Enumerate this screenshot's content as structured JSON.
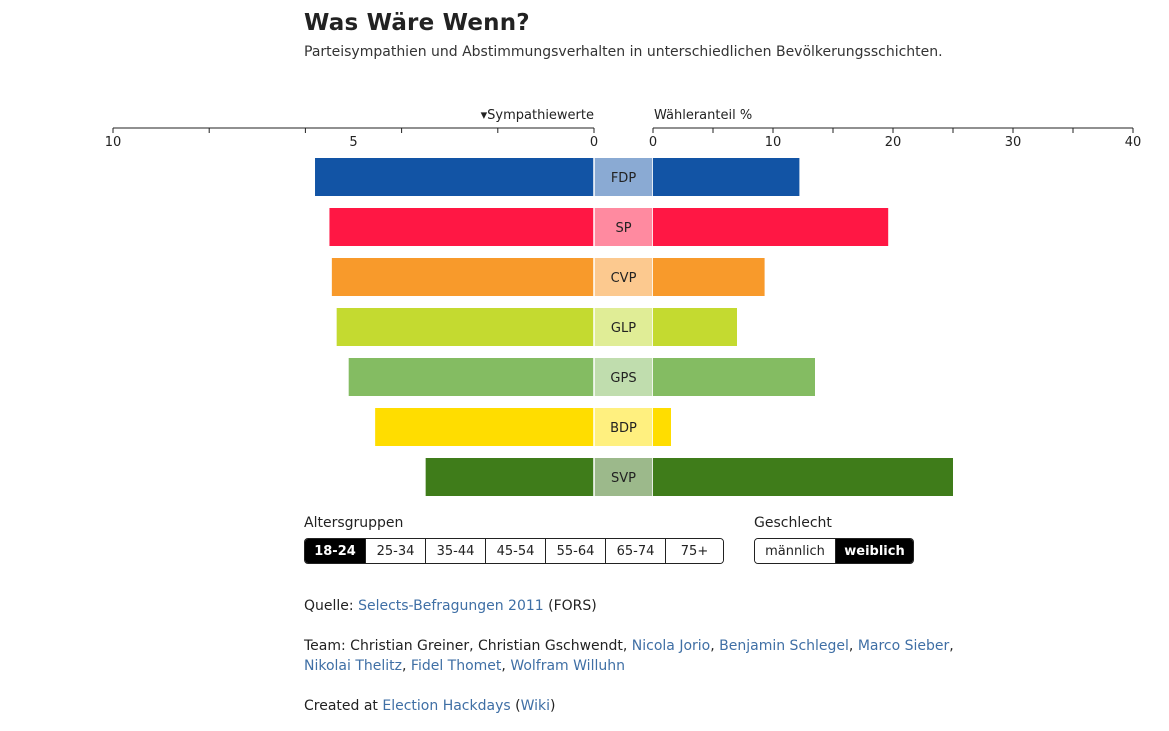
{
  "header": {
    "title": "Was Wäre Wenn?",
    "subtitle": "Parteisympathien und Abstimmungsverhalten in unterschiedlichen Bevölkerungsschichten."
  },
  "chart_data": {
    "type": "bar",
    "left_axis": {
      "label": "Sympathiewerte",
      "label_marker": "▾",
      "range": [
        10,
        0
      ],
      "tick_labels": [
        "10",
        "5",
        "0"
      ],
      "minor_ticks": [
        10,
        8,
        6,
        4,
        2,
        0
      ]
    },
    "right_axis": {
      "label": "Wähleranteil %",
      "range": [
        0,
        40
      ],
      "tick_labels": [
        "0",
        "10",
        "20",
        "30",
        "40"
      ],
      "minor_ticks": [
        0,
        5,
        10,
        15,
        20,
        25,
        30,
        35,
        40
      ]
    },
    "categories": [
      "FDP",
      "SP",
      "CVP",
      "GLP",
      "GPS",
      "BDP",
      "SVP"
    ],
    "series": [
      {
        "name": "Sympathiewerte",
        "values": [
          5.8,
          5.5,
          5.45,
          5.35,
          5.1,
          4.55,
          3.5
        ]
      },
      {
        "name": "Wähleranteil %",
        "values": [
          12.2,
          19.6,
          9.3,
          7.0,
          13.5,
          1.5,
          25.0
        ]
      }
    ],
    "colors": [
      "#1254a5",
      "#ff1744",
      "#f89a2b",
      "#c4da30",
      "#84bc62",
      "#ffdd00",
      "#3f7c1a"
    ],
    "label_colors": [
      "#8aaad3",
      "#ff8aa0",
      "#fcc98f",
      "#e0ed96",
      "#c0ddae",
      "#fff07f",
      "#9cb98b"
    ]
  },
  "filters": {
    "age": {
      "label": "Altersgruppen",
      "options": [
        "18-24",
        "25-34",
        "35-44",
        "45-54",
        "55-64",
        "65-74",
        "75+"
      ],
      "selected": "18-24"
    },
    "gender": {
      "label": "Geschlecht",
      "options": [
        "männlich",
        "weiblich"
      ],
      "selected": "weiblich"
    }
  },
  "footer": {
    "source_prefix": "Quelle: ",
    "source_link": "Selects-Befragungen 2011",
    "source_suffix": " (FORS)",
    "team_prefix": "Team: Christian Greiner, Christian Gschwendt, ",
    "team_links": [
      "Nicola Jorio",
      "Benjamin Schlegel",
      "Marco Sieber",
      "Nikolai Thelitz",
      "Fidel Thomet",
      "Wolfram Willuhn"
    ],
    "sep": ", ",
    "created_prefix": "Created at ",
    "created_link": "Election Hackdays",
    "paren_open": " (",
    "created_link2": "Wiki",
    "paren_close": ")"
  }
}
